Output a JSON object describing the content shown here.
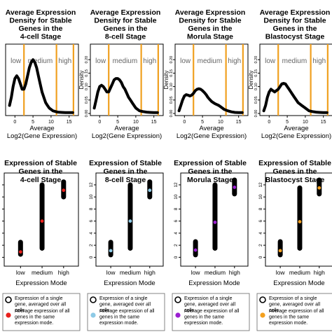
{
  "chart_data": [
    {
      "type": "line",
      "title_lines": [
        "Average Expression",
        "Density for Stable",
        "Genes in the",
        "4-cell Stage"
      ],
      "xlabel_lines": [
        "Average",
        "Log2(Gene Expression)"
      ],
      "ylabel": "",
      "xlim": [
        -2,
        17
      ],
      "ylim": [
        0,
        0.25
      ],
      "x_ticks": [
        0,
        5,
        10,
        15
      ],
      "y_ticks": [],
      "thresholds": [
        2.5,
        11.5,
        16.2
      ],
      "regions": [
        "low",
        "medium",
        "high"
      ],
      "curve": {
        "x": [
          -1.5,
          -1,
          -0.5,
          0,
          0.5,
          1,
          1.5,
          2,
          2.5,
          3,
          3.5,
          4,
          4.5,
          5,
          5.5,
          6,
          6.5,
          7,
          7.5,
          8,
          8.5,
          9,
          9.5,
          10,
          10.5,
          11,
          11.5,
          12,
          13,
          14,
          15,
          16
        ],
        "y": [
          0.03,
          0.06,
          0.1,
          0.13,
          0.14,
          0.13,
          0.11,
          0.09,
          0.09,
          0.11,
          0.14,
          0.17,
          0.19,
          0.2,
          0.19,
          0.17,
          0.14,
          0.11,
          0.08,
          0.06,
          0.04,
          0.03,
          0.02,
          0.015,
          0.01,
          0.008,
          0.006,
          0.005,
          0.004,
          0.003,
          0.003,
          0.003
        ]
      }
    },
    {
      "type": "line",
      "title_lines": [
        "Average Expression",
        "Density for Stable",
        "Genes in the",
        "8-cell Stage"
      ],
      "xlabel_lines": [
        "Average",
        "Log2(Gene Expression)"
      ],
      "ylabel": "Density",
      "xlim": [
        -2,
        17
      ],
      "ylim": [
        0,
        0.25
      ],
      "x_ticks": [
        0,
        5,
        10,
        15
      ],
      "y_ticks": [
        0.0,
        0.05,
        0.1,
        0.15,
        0.2
      ],
      "thresholds": [
        2.5,
        11.5,
        16.2
      ],
      "regions": [
        "low",
        "medium",
        "high"
      ],
      "curve": {
        "x": [
          -1.5,
          -1,
          -0.5,
          0,
          0.5,
          1,
          1.5,
          2,
          2.5,
          3,
          3.5,
          4,
          4.5,
          5,
          5.5,
          6,
          6.5,
          7,
          7.5,
          8,
          8.5,
          9,
          9.5,
          10,
          10.5,
          11,
          12,
          13,
          14,
          15,
          16
        ],
        "y": [
          0.02,
          0.05,
          0.08,
          0.1,
          0.105,
          0.1,
          0.09,
          0.08,
          0.08,
          0.095,
          0.11,
          0.125,
          0.13,
          0.13,
          0.125,
          0.115,
          0.1,
          0.09,
          0.075,
          0.06,
          0.05,
          0.04,
          0.03,
          0.02,
          0.015,
          0.01,
          0.007,
          0.005,
          0.004,
          0.003,
          0.003
        ]
      }
    },
    {
      "type": "line",
      "title_lines": [
        "Average Expression",
        "Density for Stable",
        "Genes in the",
        "Morula Stage"
      ],
      "xlabel_lines": [
        "Average",
        "Log2(Gene Expression)"
      ],
      "ylabel": "Density",
      "xlim": [
        -2,
        17
      ],
      "ylim": [
        0,
        0.25
      ],
      "x_ticks": [
        0,
        5,
        10,
        15
      ],
      "y_ticks": [
        0.0,
        0.05,
        0.1,
        0.15,
        0.2
      ],
      "thresholds": [
        2.5,
        11.5,
        16.2
      ],
      "regions": [
        "low",
        "medium",
        "high"
      ],
      "curve": {
        "x": [
          -1.5,
          -1,
          -0.5,
          0,
          0.5,
          1,
          1.5,
          2,
          2.5,
          3,
          3.5,
          4,
          4.5,
          5,
          5.5,
          6,
          6.5,
          7,
          7.5,
          8,
          8.5,
          9,
          9.5,
          10,
          10.5,
          11,
          12,
          13,
          14,
          15,
          16
        ],
        "y": [
          0.01,
          0.03,
          0.05,
          0.065,
          0.07,
          0.068,
          0.065,
          0.068,
          0.075,
          0.085,
          0.09,
          0.092,
          0.09,
          0.085,
          0.078,
          0.07,
          0.06,
          0.052,
          0.045,
          0.04,
          0.036,
          0.033,
          0.03,
          0.025,
          0.02,
          0.015,
          0.01,
          0.006,
          0.004,
          0.003,
          0.003
        ]
      }
    },
    {
      "type": "line",
      "title_lines": [
        "Average Expression",
        "Density for Stable",
        "Genes in the",
        "Blastocyst Stage"
      ],
      "xlabel_lines": [
        "Average",
        "Log2(Gene Expression)"
      ],
      "ylabel": "Density",
      "xlim": [
        -2,
        17
      ],
      "ylim": [
        0,
        0.25
      ],
      "x_ticks": [
        0,
        5,
        10,
        15
      ],
      "y_ticks": [
        0.0,
        0.05,
        0.1,
        0.15,
        0.2
      ],
      "thresholds": [
        2.5,
        11.5,
        16.2
      ],
      "regions": [
        "low",
        "medium",
        "high"
      ],
      "curve": {
        "x": [
          -1.5,
          -1,
          -0.5,
          0,
          0.5,
          1,
          1.5,
          2,
          2.5,
          3,
          3.5,
          4,
          4.5,
          5,
          5.5,
          6,
          6.5,
          7,
          7.5,
          8,
          8.5,
          9,
          9.5,
          10,
          10.5,
          11,
          12,
          13,
          14,
          15,
          16
        ],
        "y": [
          0.01,
          0.03,
          0.06,
          0.08,
          0.09,
          0.085,
          0.08,
          0.085,
          0.09,
          0.1,
          0.11,
          0.112,
          0.11,
          0.1,
          0.09,
          0.08,
          0.07,
          0.06,
          0.05,
          0.04,
          0.035,
          0.03,
          0.025,
          0.02,
          0.015,
          0.01,
          0.007,
          0.005,
          0.004,
          0.003,
          0.003
        ]
      }
    },
    {
      "type": "scatter",
      "title_lines": [
        "Expression of Stable",
        "Genes in the",
        "4-cell Stage"
      ],
      "xlabel": "Expression Mode",
      "ylim": [
        -1,
        13.5
      ],
      "y_ticks": [
        0,
        2,
        4,
        6,
        8,
        10,
        12
      ],
      "categories": [
        "low",
        "medium",
        "high"
      ],
      "ranges": [
        [
          0.5,
          2.5
        ],
        [
          1.5,
          12
        ],
        [
          10,
          12.5
        ]
      ],
      "means": [
        0.9,
        6.0,
        11.1
      ],
      "mean_color": "#e8201c",
      "legend": [
        "Expression of a single gene, averaged over all cells.",
        "Average expression of all genes in the same expression mode."
      ]
    },
    {
      "type": "scatter",
      "title_lines": [
        "Expression of Stable",
        "Genes in the",
        "8-cell Stage"
      ],
      "xlabel": "Expression Mode",
      "ylim": [
        -1,
        13.5
      ],
      "y_ticks": [
        0,
        2,
        4,
        6,
        8,
        10,
        12
      ],
      "categories": [
        "low",
        "medium",
        "high"
      ],
      "ranges": [
        [
          0.4,
          2.5
        ],
        [
          1.5,
          12
        ],
        [
          10,
          12.5
        ]
      ],
      "means": [
        1.1,
        6.0,
        11.1
      ],
      "mean_color": "#8ecae6",
      "legend": [
        "Expression of a single gene, averaged over all cells.",
        "Average expression of all genes in the same expression mode."
      ]
    },
    {
      "type": "scatter",
      "title_lines": [
        "Expression of Stable",
        "Genes in the",
        "Morula Stage"
      ],
      "xlabel": "Expression Mode",
      "ylim": [
        -1,
        13.5
      ],
      "y_ticks": [
        0,
        2,
        4,
        6,
        8,
        10,
        12
      ],
      "categories": [
        "low",
        "medium",
        "high"
      ],
      "ranges": [
        [
          0.4,
          2.6
        ],
        [
          1.5,
          12
        ],
        [
          10.5,
          12.8
        ]
      ],
      "means": [
        1.2,
        5.8,
        11.6
      ],
      "mean_color": "#9b1fd1",
      "legend": [
        "Expression of a single gene, averaged over all cells.",
        "Average expression of all genes in the same expression mode."
      ]
    },
    {
      "type": "scatter",
      "title_lines": [
        "Expression of Stable",
        "Genes in the",
        "Blastocyst Stage"
      ],
      "xlabel": "Expression Mode",
      "ylim": [
        -1,
        13.5
      ],
      "y_ticks": [
        0,
        2,
        4,
        6,
        8,
        10,
        12
      ],
      "categories": [
        "low",
        "medium",
        "high"
      ],
      "ranges": [
        [
          0.4,
          2.6
        ],
        [
          1.5,
          11.5
        ],
        [
          10.5,
          12.8
        ]
      ],
      "means": [
        1.1,
        5.9,
        11.5
      ],
      "mean_color": "#f3a01f",
      "legend": [
        "Expression of a single gene, averaged over all cells.",
        "Average expression of all genes in the same expression mode."
      ]
    }
  ]
}
